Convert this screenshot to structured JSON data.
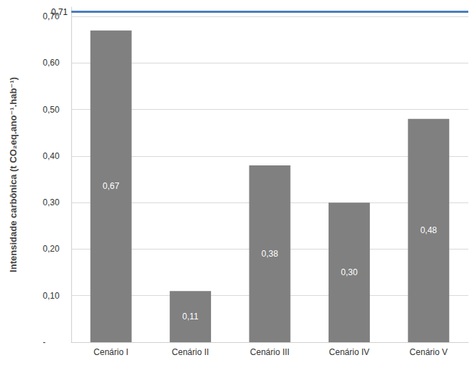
{
  "chart_data": {
    "type": "bar",
    "y_label": "Intensidade carbônica (t CO₂eq.ano⁻¹.hab⁻¹)",
    "categories": [
      "Cenário I",
      "Cenário II",
      "Cenário III",
      "Cenário IV",
      "Cenário V"
    ],
    "values": [
      0.67,
      0.11,
      0.38,
      0.3,
      0.48
    ],
    "value_labels": [
      "0,67",
      "0,11",
      "0,38",
      "0,30",
      "0,48"
    ],
    "color": "#808080",
    "data_labels": true,
    "ylim": [
      0,
      0.72
    ],
    "yticks": [
      {
        "value": 0,
        "label": "-"
      },
      {
        "value": 0.1,
        "label": "0,10"
      },
      {
        "value": 0.2,
        "label": "0,20"
      },
      {
        "value": 0.3,
        "label": "0,30"
      },
      {
        "value": 0.4,
        "label": "0,40"
      },
      {
        "value": 0.5,
        "label": "0,50"
      },
      {
        "value": 0.6,
        "label": "0,60"
      },
      {
        "value": 0.7,
        "label": "0,70"
      }
    ],
    "grid": true,
    "reference_line": {
      "value": 0.71,
      "label": "0,71",
      "color": "#4a7ebb"
    }
  }
}
